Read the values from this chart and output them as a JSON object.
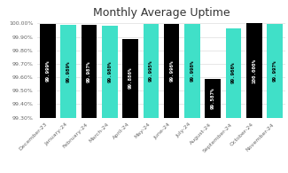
{
  "categories": [
    "December-23",
    "January-24",
    "February-24",
    "March-24",
    "April-24",
    "May-24",
    "June-24",
    "July-24",
    "August-24",
    "September-24",
    "October-24",
    "November-24"
  ],
  "values": [
    99.999,
    99.989,
    99.987,
    99.98,
    99.886,
    99.995,
    99.996,
    99.998,
    99.587,
    99.966,
    100.0,
    99.997
  ],
  "labels": [
    "99.999%",
    "99.989%",
    "99.987%",
    "99.980%",
    "99.886%",
    "99.995%",
    "99.996%",
    "99.998%",
    "99.587%",
    "99.966%",
    "100.000%",
    "99.997%"
  ],
  "bar_colors": [
    "#000000",
    "#40e0c8",
    "#000000",
    "#40e0c8",
    "#000000",
    "#40e0c8",
    "#000000",
    "#40e0c8",
    "#000000",
    "#40e0c8",
    "#000000",
    "#40e0c8"
  ],
  "title": "Monthly Average Uptime",
  "ylim_min": 99.3,
  "ylim_max": 100.02,
  "yticks": [
    99.3,
    99.4,
    99.5,
    99.6,
    99.7,
    99.8,
    99.9,
    100.0
  ],
  "ytick_labels": [
    "99.30%",
    "99.40%",
    "99.50%",
    "99.60%",
    "99.70%",
    "99.80%",
    "99.90%",
    "100.00%"
  ],
  "background_color": "#ffffff",
  "title_fontsize": 9,
  "label_fontsize": 4.2,
  "tick_fontsize": 4.5,
  "bar_width": 0.75
}
